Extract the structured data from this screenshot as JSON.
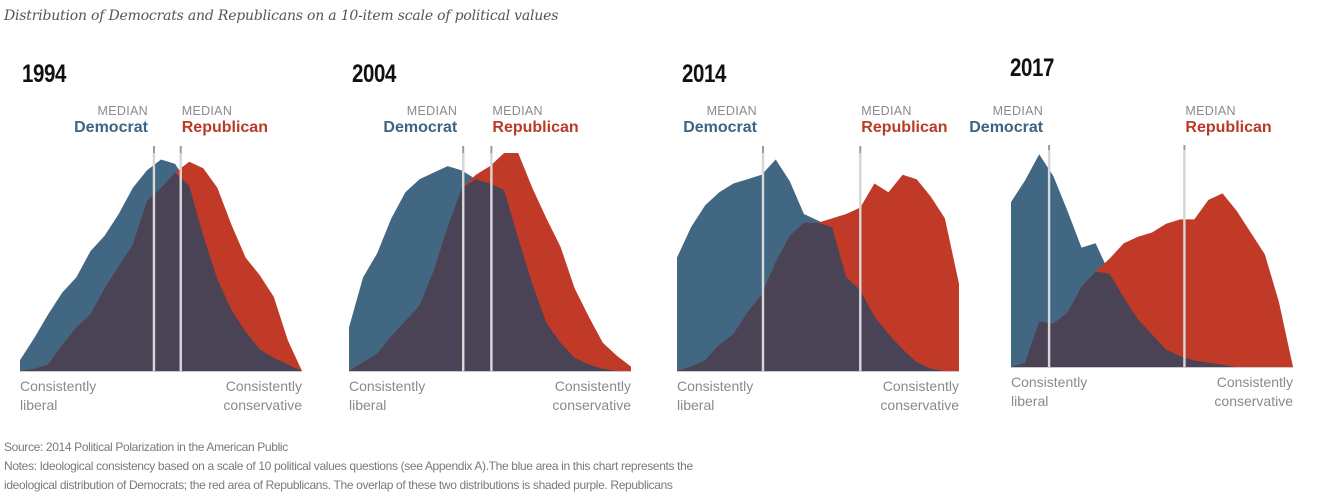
{
  "title": "Distribution of Democrats and Republicans on a 10-item scale of political values",
  "labels": {
    "median": "MEDIAN",
    "democrat": "Democrat",
    "republican": "Republican",
    "left_line1": "Consistently",
    "left_line2": "liberal",
    "right_line1": "Consistently",
    "right_line2": "conservative"
  },
  "colors": {
    "democrat": "#416782",
    "republican": "#c13a28",
    "overlap": "#4a4356",
    "median_line": "#d7d7da",
    "median_tick": "#9a9a9a"
  },
  "footer": {
    "source": "Source: 2014 Political Polarization in the American Public",
    "notes_line1": "Notes: Ideological consistency based on a scale of 10 political values questions (see Appendix A).The blue area in this chart represents the",
    "notes_line2": "ideological distribution of Democrats; the red area of Republicans. The overlap of these two distributions is shaded purple. Republicans"
  },
  "chart_data": [
    {
      "type": "area",
      "title": "1994",
      "xlabel": "Consistently liberal → Consistently conservative",
      "ylabel": "",
      "x_range": [
        -10,
        10
      ],
      "ylim": [
        0,
        100
      ],
      "grid": false,
      "x": [
        -10,
        -9,
        -8,
        -7,
        -6,
        -5,
        -4,
        -3,
        -2,
        -1,
        0,
        1,
        2,
        3,
        4,
        5,
        6,
        7,
        8,
        9,
        10
      ],
      "series": [
        {
          "name": "Democrat",
          "values": [
            5,
            15,
            26,
            36,
            43,
            55,
            62,
            72,
            84,
            92,
            97,
            95,
            85,
            62,
            42,
            28,
            18,
            10,
            6,
            3,
            0
          ]
        },
        {
          "name": "Republican",
          "values": [
            0,
            1,
            3,
            12,
            20,
            26,
            38,
            48,
            58,
            78,
            84,
            91,
            96,
            93,
            84,
            67,
            52,
            44,
            34,
            14,
            0
          ]
        }
      ],
      "medians": {
        "Democrat": -0.5,
        "Republican": 1.4
      }
    },
    {
      "type": "area",
      "title": "2004",
      "xlabel": "Consistently liberal → Consistently conservative",
      "ylabel": "",
      "x_range": [
        -10,
        10
      ],
      "ylim": [
        0,
        100
      ],
      "grid": false,
      "x": [
        -10,
        -9,
        -8,
        -7,
        -6,
        -5,
        -4,
        -3,
        -2,
        -1,
        0,
        1,
        2,
        3,
        4,
        5,
        6,
        7,
        8,
        9,
        10
      ],
      "series": [
        {
          "name": "Democrat",
          "values": [
            20,
            43,
            54,
            70,
            82,
            88,
            91,
            94,
            92,
            88,
            86,
            83,
            61,
            40,
            22,
            13,
            6,
            3,
            1,
            0,
            0
          ]
        },
        {
          "name": "Republican",
          "values": [
            0,
            4,
            8,
            16,
            23,
            30,
            46,
            66,
            84,
            90,
            94,
            100,
            100,
            84,
            70,
            57,
            38,
            25,
            13,
            7,
            2
          ]
        }
      ],
      "medians": {
        "Democrat": -1.9,
        "Republican": 0.1
      }
    },
    {
      "type": "area",
      "title": "2014",
      "xlabel": "Consistently liberal → Consistently conservative",
      "ylabel": "",
      "x_range": [
        -10,
        10
      ],
      "ylim": [
        0,
        100
      ],
      "grid": false,
      "x": [
        -10,
        -9,
        -8,
        -7,
        -6,
        -5,
        -4,
        -3,
        -2,
        -1,
        0,
        1,
        2,
        3,
        4,
        5,
        6,
        7,
        8,
        9,
        10
      ],
      "series": [
        {
          "name": "Democrat",
          "values": [
            52,
            66,
            76,
            82,
            86,
            88,
            90,
            97,
            87,
            72,
            69,
            66,
            43,
            37,
            25,
            17,
            10,
            4,
            1,
            0,
            0
          ]
        },
        {
          "name": "Republican",
          "values": [
            0,
            2,
            5,
            12,
            17,
            27,
            35,
            50,
            62,
            68,
            68,
            70,
            72,
            75,
            86,
            82,
            90,
            88,
            80,
            70,
            40
          ]
        }
      ],
      "medians": {
        "Democrat": -3.9,
        "Republican": 3.0
      }
    },
    {
      "type": "area",
      "title": "2017",
      "xlabel": "Consistently liberal → Consistently conservative",
      "ylabel": "",
      "x_range": [
        -10,
        10
      ],
      "ylim": [
        0,
        100
      ],
      "grid": false,
      "x": [
        -10,
        -9,
        -8,
        -7,
        -6,
        -5,
        -4,
        -3,
        -2,
        -1,
        0,
        1,
        2,
        3,
        4,
        5,
        6,
        7,
        8,
        9,
        10
      ],
      "series": [
        {
          "name": "Democrat",
          "values": [
            76,
            86,
            98,
            88,
            72,
            55,
            57,
            43,
            32,
            22,
            15,
            8,
            5,
            3,
            2,
            1,
            0,
            0,
            0,
            0,
            0
          ]
        },
        {
          "name": "Republican",
          "values": [
            0,
            2,
            21,
            20,
            25,
            37,
            44,
            50,
            57,
            60,
            62,
            66,
            68,
            68,
            77,
            80,
            72,
            62,
            52,
            30,
            0
          ]
        }
      ],
      "medians": {
        "Democrat": -7.3,
        "Republican": 2.3
      }
    }
  ]
}
